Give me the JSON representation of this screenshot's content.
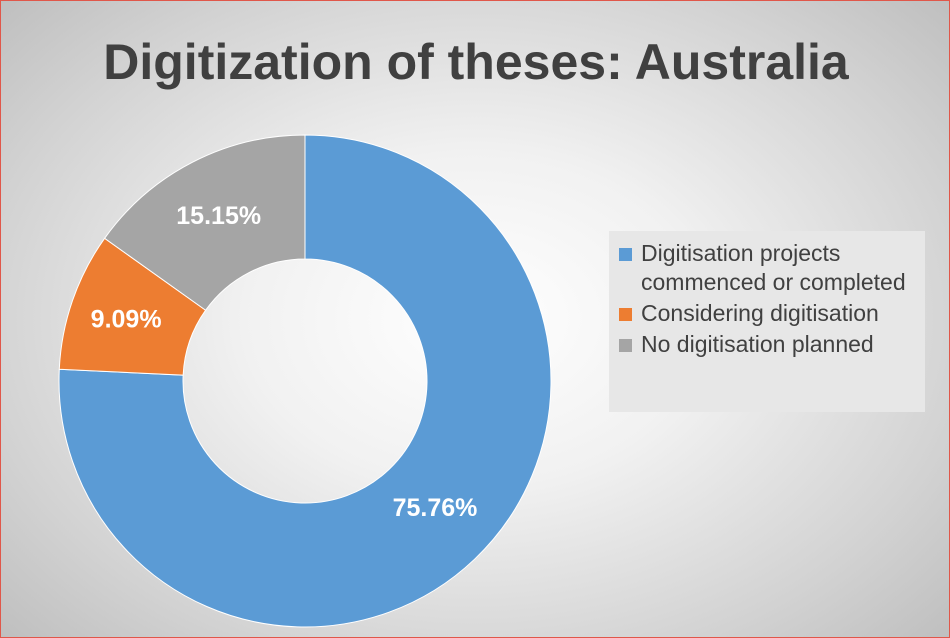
{
  "chart_data": {
    "type": "pie",
    "variant": "donut",
    "title": "Digitization of theses: Australia",
    "slices": [
      {
        "label": "Digitisation projects commenced or completed",
        "value": 75.76,
        "display": "75.76%",
        "color": "#5b9bd5"
      },
      {
        "label": "Considering digitisation",
        "value": 9.09,
        "display": "9.09%",
        "color": "#ed7d31"
      },
      {
        "label": "No digitisation planned",
        "value": 15.15,
        "display": "15.15%",
        "color": "#a5a5a5"
      }
    ],
    "legend_position": "right"
  }
}
